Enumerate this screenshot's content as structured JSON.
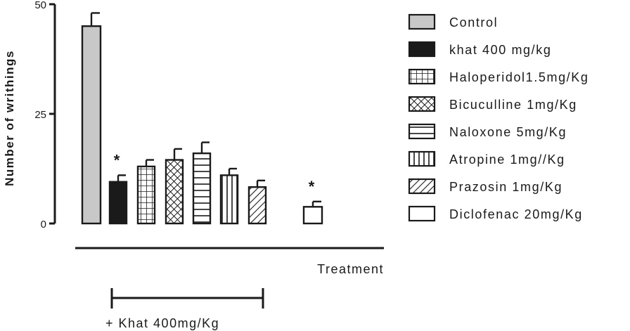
{
  "chart_data": {
    "type": "bar",
    "ylabel": "Number of writhings",
    "xlabel": "Treatment",
    "ylim": [
      0,
      50
    ],
    "yticks": [
      "0",
      "25",
      "50"
    ],
    "grid": false,
    "legend_position": "right",
    "series": [
      {
        "name": "Control",
        "value": 45,
        "error": 3,
        "pattern": "solid-gray",
        "significance": ""
      },
      {
        "name": "khat 400 mg/kg",
        "value": 9.5,
        "error": 1.5,
        "pattern": "solid-black",
        "significance": "*"
      },
      {
        "name": "Haloperidol1.5mg/Kg",
        "value": 13,
        "error": 1.5,
        "pattern": "grid",
        "significance": ""
      },
      {
        "name": "Bicuculline 1mg/Kg",
        "value": 14.5,
        "error": 2.5,
        "pattern": "crosshatch",
        "significance": ""
      },
      {
        "name": "Naloxone 5mg/Kg",
        "value": 16,
        "error": 2.5,
        "pattern": "horizontal",
        "significance": ""
      },
      {
        "name": "Atropine 1mg//Kg",
        "value": 11,
        "error": 1.5,
        "pattern": "vertical",
        "significance": ""
      },
      {
        "name": "Prazosin 1mg/Kg",
        "value": 8.3,
        "error": 1.5,
        "pattern": "diagonal",
        "significance": ""
      },
      {
        "name": "Diclofenac 20mg/Kg",
        "value": 3.8,
        "error": 1.2,
        "pattern": "solid-white",
        "significance": "*"
      }
    ],
    "bracket_label": "+ Khat 400mg/Kg",
    "colors": {
      "control": "#c8c8c8",
      "khat": "#1a1a1a",
      "stroke": "#1a1a1a",
      "white": "#ffffff"
    }
  }
}
